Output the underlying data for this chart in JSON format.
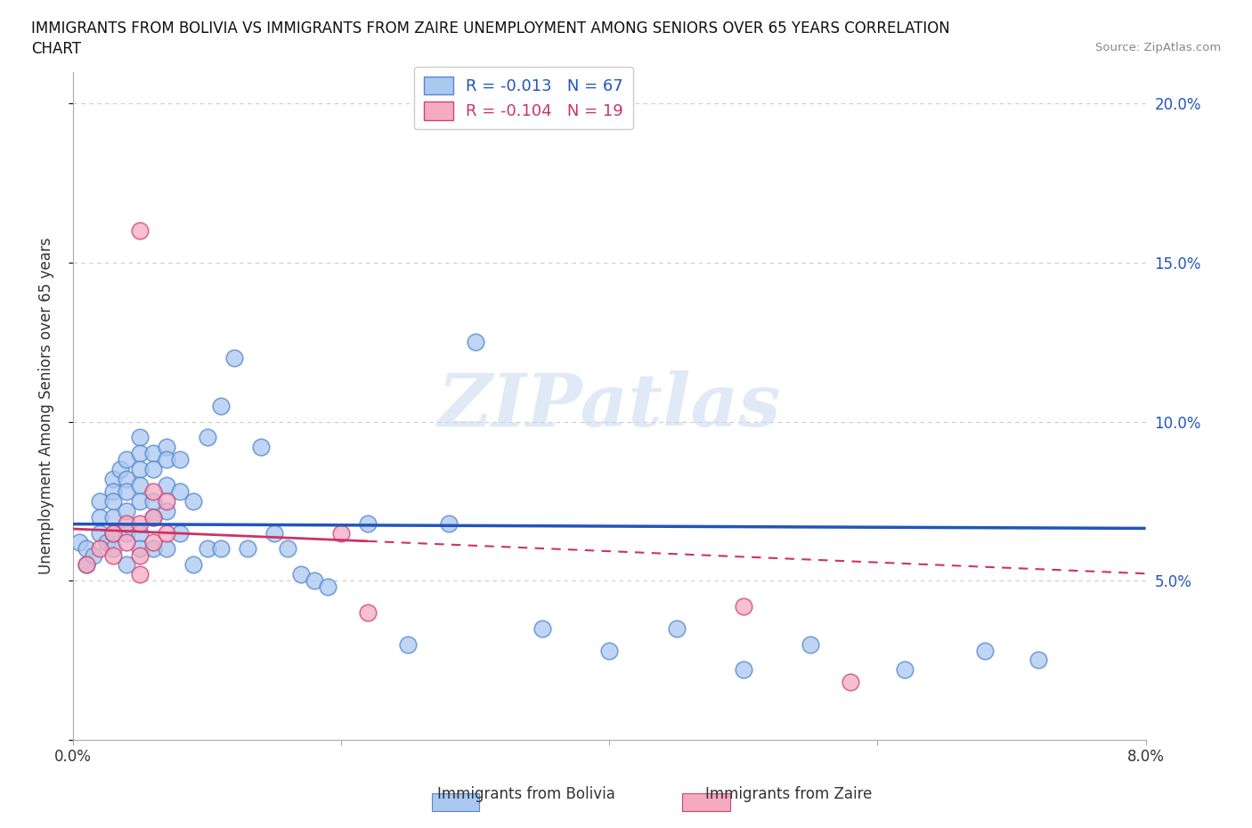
{
  "title_line1": "IMMIGRANTS FROM BOLIVIA VS IMMIGRANTS FROM ZAIRE UNEMPLOYMENT AMONG SENIORS OVER 65 YEARS CORRELATION",
  "title_line2": "CHART",
  "source_text": "Source: ZipAtlas.com",
  "ylabel": "Unemployment Among Seniors over 65 years",
  "xlim": [
    0.0,
    0.08
  ],
  "ylim": [
    0.0,
    0.21
  ],
  "yticks": [
    0.0,
    0.05,
    0.1,
    0.15,
    0.2
  ],
  "ytick_labels_right": [
    "",
    "5.0%",
    "10.0%",
    "15.0%",
    "20.0%"
  ],
  "xticks": [
    0.0,
    0.02,
    0.04,
    0.06,
    0.08
  ],
  "xtick_labels": [
    "0.0%",
    "",
    "",
    "",
    "8.0%"
  ],
  "bolivia_color": "#aac8f0",
  "zaire_color": "#f5aac0",
  "bolivia_edge_color": "#5588cc",
  "zaire_edge_color": "#cc4477",
  "trend_bolivia_color": "#2255bb",
  "trend_zaire_color": "#cc3366",
  "R_bolivia": -0.013,
  "N_bolivia": 67,
  "R_zaire": -0.104,
  "N_zaire": 19,
  "bolivia_x": [
    0.0005,
    0.001,
    0.001,
    0.0015,
    0.002,
    0.002,
    0.002,
    0.0025,
    0.003,
    0.003,
    0.003,
    0.003,
    0.003,
    0.003,
    0.0035,
    0.004,
    0.004,
    0.004,
    0.004,
    0.004,
    0.004,
    0.005,
    0.005,
    0.005,
    0.005,
    0.005,
    0.005,
    0.005,
    0.006,
    0.006,
    0.006,
    0.006,
    0.006,
    0.007,
    0.007,
    0.007,
    0.007,
    0.007,
    0.008,
    0.008,
    0.008,
    0.009,
    0.009,
    0.01,
    0.01,
    0.011,
    0.011,
    0.012,
    0.013,
    0.014,
    0.015,
    0.016,
    0.017,
    0.018,
    0.019,
    0.022,
    0.025,
    0.028,
    0.03,
    0.035,
    0.04,
    0.045,
    0.05,
    0.055,
    0.062,
    0.068,
    0.072
  ],
  "bolivia_y": [
    0.062,
    0.06,
    0.055,
    0.058,
    0.075,
    0.07,
    0.065,
    0.062,
    0.082,
    0.078,
    0.075,
    0.07,
    0.065,
    0.06,
    0.085,
    0.088,
    0.082,
    0.078,
    0.072,
    0.065,
    0.055,
    0.095,
    0.09,
    0.085,
    0.08,
    0.075,
    0.065,
    0.06,
    0.09,
    0.085,
    0.075,
    0.07,
    0.06,
    0.092,
    0.088,
    0.08,
    0.072,
    0.06,
    0.088,
    0.078,
    0.065,
    0.075,
    0.055,
    0.095,
    0.06,
    0.105,
    0.06,
    0.12,
    0.06,
    0.092,
    0.065,
    0.06,
    0.052,
    0.05,
    0.048,
    0.068,
    0.03,
    0.068,
    0.125,
    0.035,
    0.028,
    0.035,
    0.022,
    0.03,
    0.022,
    0.028,
    0.025
  ],
  "zaire_x": [
    0.001,
    0.002,
    0.003,
    0.003,
    0.004,
    0.004,
    0.005,
    0.005,
    0.005,
    0.005,
    0.006,
    0.006,
    0.006,
    0.007,
    0.007,
    0.02,
    0.022,
    0.05,
    0.058
  ],
  "zaire_y": [
    0.055,
    0.06,
    0.065,
    0.058,
    0.068,
    0.062,
    0.16,
    0.068,
    0.058,
    0.052,
    0.078,
    0.07,
    0.062,
    0.075,
    0.065,
    0.065,
    0.04,
    0.042,
    0.018
  ],
  "watermark_text": "ZIPatlas",
  "background_color": "#ffffff",
  "grid_color": "#cccccc"
}
